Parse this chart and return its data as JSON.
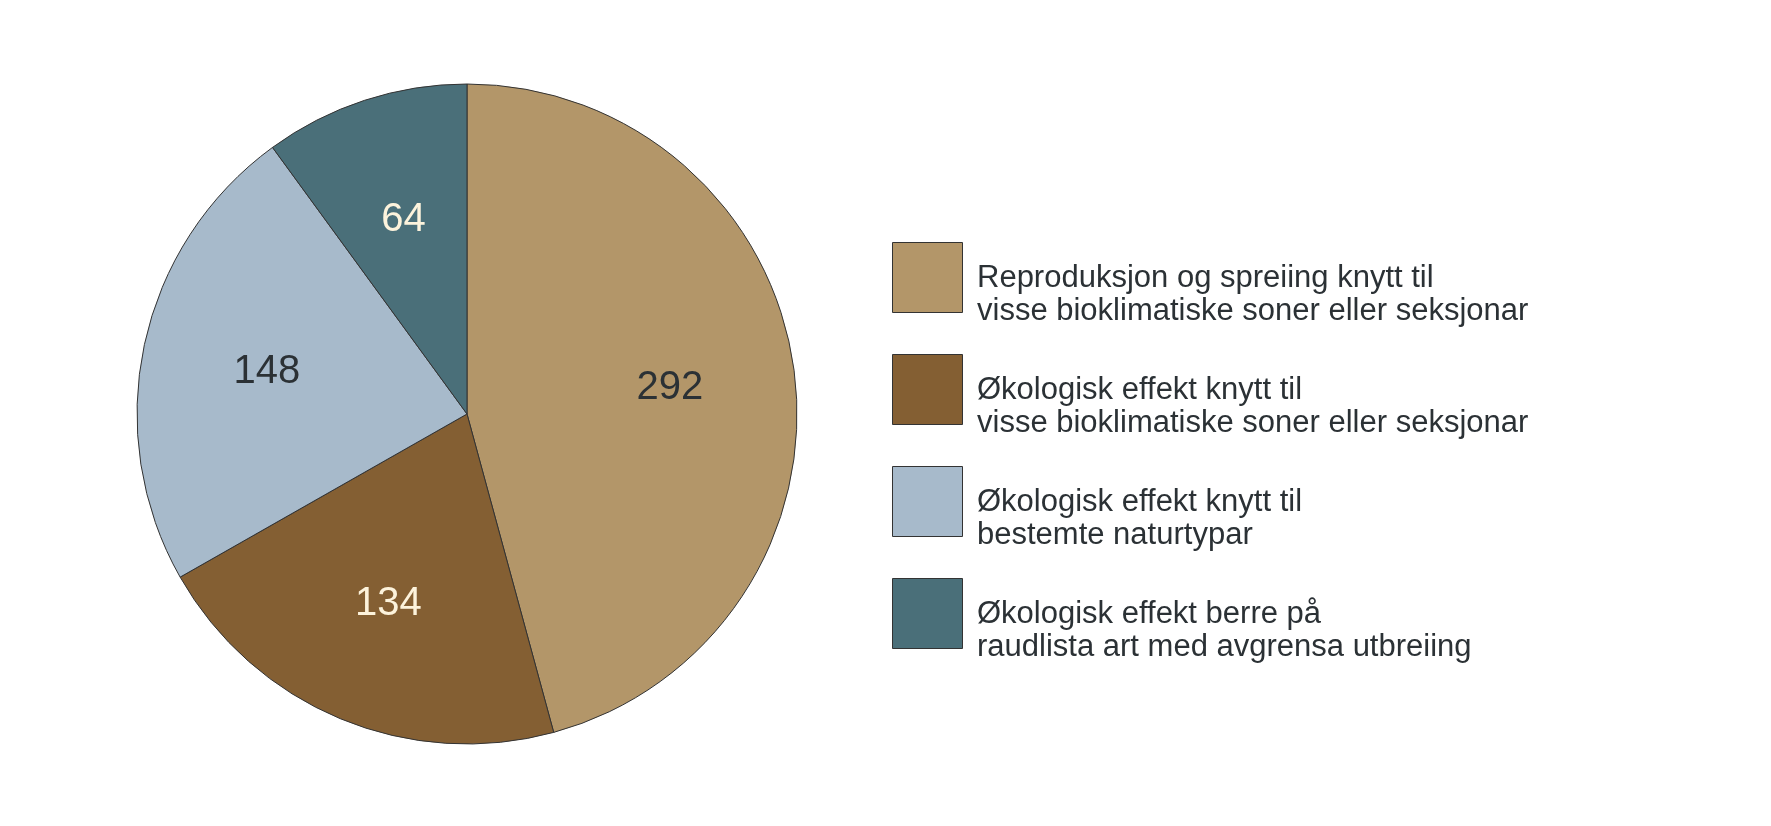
{
  "chart_data": {
    "type": "pie",
    "categories": [
      "Reproduksjon og spreiing knytt til\nvisse bioklimatiske soner eller seksjonar",
      "Økologisk effekt knytt til\nvisse bioklimatiske soner eller seksjonar",
      "Økologisk effekt knytt til\nbestemte naturtypar",
      "Økologisk effekt berre på\nraudlista art med avgrensa utbreiing"
    ],
    "values": [
      292,
      134,
      148,
      64
    ],
    "colors": [
      "#b39669",
      "#845f33",
      "#a7bacb",
      "#4a6f79"
    ],
    "data_labels": true,
    "legend": "right"
  }
}
